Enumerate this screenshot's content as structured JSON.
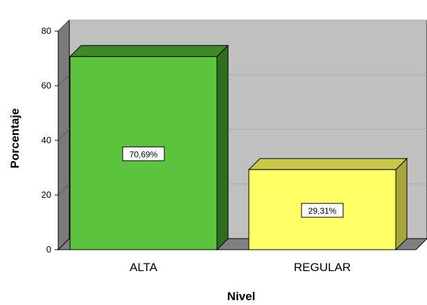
{
  "chart_data": {
    "type": "bar",
    "categories": [
      "ALTA",
      "REGULAR"
    ],
    "values": [
      70.69,
      29.31
    ],
    "data_labels": [
      "70,69%",
      "29,31%"
    ],
    "xlabel": "Nivel",
    "ylabel": "Porcentaje",
    "ylim": [
      0,
      80
    ],
    "yticks": [
      0,
      20,
      40,
      60,
      80
    ],
    "style": "3d",
    "grid": true,
    "legend": "none",
    "colors": {
      "bars": [
        "#5cc43c",
        "#ffff66"
      ],
      "bar_tops": [
        "#3d8a26",
        "#c8c84a"
      ],
      "bar_sides": [
        "#2f6e1d",
        "#a6a63a"
      ],
      "wall": "#c0c0c0",
      "floor": "#808080",
      "left_wall": "#7a7a7a"
    }
  }
}
